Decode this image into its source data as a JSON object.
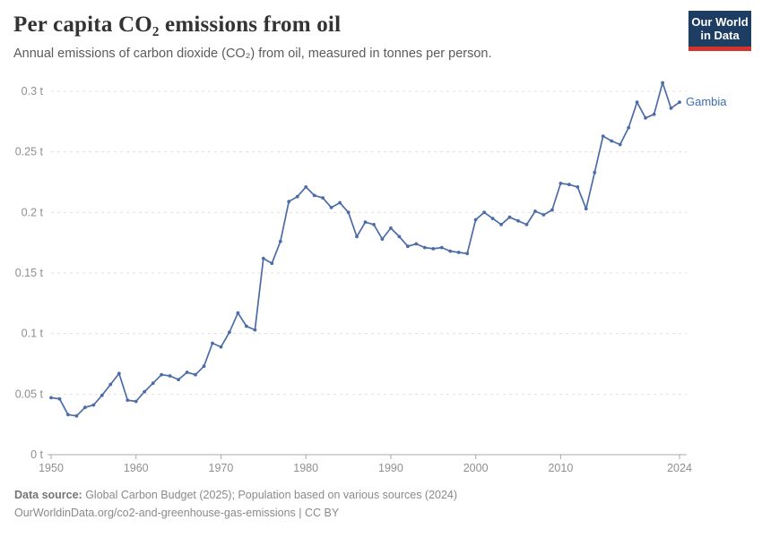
{
  "header": {
    "title": "Per capita CO₂ emissions from oil",
    "subtitle": "Annual emissions of carbon dioxide (CO₂) from oil, measured in tonnes per person."
  },
  "logo": {
    "line1": "Our World",
    "line2": "in Data",
    "bg_color": "#1d3d63",
    "bar_color": "#d1342c"
  },
  "chart_data": {
    "type": "line",
    "title": "Per capita CO₂ emissions from oil",
    "unit": "t",
    "xlabel": "",
    "ylabel": "",
    "xlim": [
      1950,
      2024
    ],
    "ylim": [
      0,
      0.3
    ],
    "grid": "horizontal-dashed",
    "legend_position": "end-of-line-label",
    "x_ticks": [
      1950,
      1960,
      1970,
      1980,
      1990,
      2000,
      2010,
      2024
    ],
    "y_ticks": [
      {
        "value": 0,
        "label": "0 t"
      },
      {
        "value": 0.05,
        "label": "0.05 t"
      },
      {
        "value": 0.1,
        "label": "0.1 t"
      },
      {
        "value": 0.15,
        "label": "0.15 t"
      },
      {
        "value": 0.2,
        "label": "0.2 t"
      },
      {
        "value": 0.25,
        "label": "0.25 t"
      },
      {
        "value": 0.3,
        "label": "0.3 t"
      }
    ],
    "x": [
      1950,
      1951,
      1952,
      1953,
      1954,
      1955,
      1956,
      1957,
      1958,
      1959,
      1960,
      1961,
      1962,
      1963,
      1964,
      1965,
      1966,
      1967,
      1968,
      1969,
      1970,
      1971,
      1972,
      1973,
      1974,
      1975,
      1976,
      1977,
      1978,
      1979,
      1980,
      1981,
      1982,
      1983,
      1984,
      1985,
      1986,
      1987,
      1988,
      1989,
      1990,
      1991,
      1992,
      1993,
      1994,
      1995,
      1996,
      1997,
      1998,
      1999,
      2000,
      2001,
      2002,
      2003,
      2004,
      2005,
      2006,
      2007,
      2008,
      2009,
      2010,
      2011,
      2012,
      2013,
      2014,
      2015,
      2016,
      2017,
      2018,
      2019,
      2020,
      2021,
      2022,
      2023,
      2024
    ],
    "series": [
      {
        "name": "Gambia",
        "color": "#4c6ca8",
        "label_color": "#3d6cb0",
        "values": [
          0.047,
          0.046,
          0.033,
          0.032,
          0.039,
          0.041,
          0.049,
          0.058,
          0.067,
          0.045,
          0.044,
          0.052,
          0.059,
          0.066,
          0.065,
          0.062,
          0.068,
          0.066,
          0.073,
          0.092,
          0.089,
          0.101,
          0.117,
          0.106,
          0.103,
          0.162,
          0.158,
          0.176,
          0.209,
          0.213,
          0.221,
          0.214,
          0.212,
          0.204,
          0.208,
          0.2,
          0.18,
          0.192,
          0.19,
          0.178,
          0.187,
          0.18,
          0.172,
          0.174,
          0.171,
          0.17,
          0.171,
          0.168,
          0.167,
          0.166,
          0.194,
          0.2,
          0.195,
          0.19,
          0.196,
          0.193,
          0.19,
          0.201,
          0.198,
          0.202,
          0.224,
          0.223,
          0.221,
          0.203,
          0.233,
          0.263,
          0.259,
          0.256,
          0.27,
          0.291,
          0.278,
          0.281,
          0.307,
          0.286,
          0.291
        ]
      }
    ],
    "axis_color": "#a8a8a8",
    "gridline_color": "#e0e0e0",
    "tick_label_color": "#8f8f8f"
  },
  "footer": {
    "data_source_label": "Data source:",
    "data_source_text": " Global Carbon Budget (2025); Population based on various sources (2024)",
    "url_line": "OurWorldinData.org/co2-and-greenhouse-gas-emissions | CC BY"
  }
}
